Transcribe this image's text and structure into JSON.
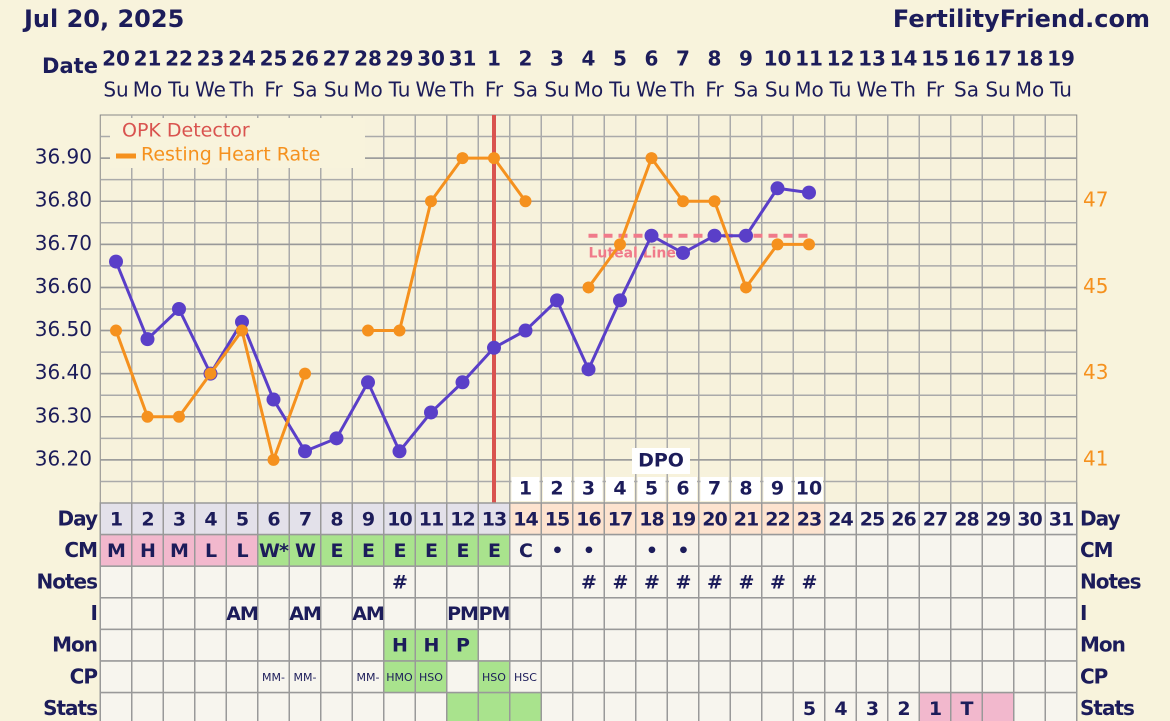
{
  "header": {
    "date": "Jul 20, 2025",
    "site": "FertilityFriend.com"
  },
  "chart_data": {
    "type": "line",
    "x_label": "Date",
    "categories": [
      "20",
      "21",
      "22",
      "23",
      "24",
      "25",
      "26",
      "27",
      "28",
      "29",
      "30",
      "31",
      "1",
      "2",
      "3",
      "4",
      "5",
      "6",
      "7",
      "8",
      "9",
      "10",
      "11",
      "12",
      "13",
      "14",
      "15",
      "16",
      "17",
      "18",
      "19"
    ],
    "weekdays": [
      "Su",
      "Mo",
      "Tu",
      "We",
      "Th",
      "Fr",
      "Sa",
      "Su",
      "Mo",
      "Tu",
      "We",
      "Th",
      "Fr",
      "Sa",
      "Su",
      "Mo",
      "Tu",
      "We",
      "Th",
      "Fr",
      "Sa",
      "Su",
      "Mo",
      "Tu",
      "We",
      "Th",
      "Fr",
      "Sa",
      "Su",
      "Mo",
      "Tu"
    ],
    "ylim": [
      36.1,
      37.0
    ],
    "yticks": [
      {
        "value": 36.2,
        "label": "36.20"
      },
      {
        "value": 36.3,
        "label": "36.30"
      },
      {
        "value": 36.4,
        "label": "36.40"
      },
      {
        "value": 36.5,
        "label": "36.50"
      },
      {
        "value": 36.6,
        "label": "36.60"
      },
      {
        "value": 36.7,
        "label": "36.70"
      },
      {
        "value": 36.8,
        "label": "36.80"
      },
      {
        "value": 36.9,
        "label": "36.90"
      }
    ],
    "y2lim": [
      40,
      49
    ],
    "y2ticks": [
      41,
      43,
      45,
      47
    ],
    "series": [
      {
        "color": "#5a3fc8",
        "values": [
          36.66,
          36.48,
          36.55,
          36.4,
          36.52,
          36.34,
          36.22,
          36.25,
          36.38,
          36.22,
          36.31,
          36.38,
          36.46,
          36.5,
          36.57,
          36.41,
          36.57,
          36.72,
          36.68,
          36.72,
          36.72,
          36.83,
          36.82,
          null,
          null,
          null,
          null,
          null,
          null,
          null,
          null
        ]
      },
      {
        "name": "Resting Heart Rate",
        "color": "#f5911e",
        "axis": "y2",
        "values": [
          44,
          42,
          42,
          43,
          44,
          41,
          43,
          null,
          44,
          44,
          47,
          48,
          48,
          47,
          null,
          45,
          46,
          48,
          47,
          47,
          45,
          46,
          46,
          null,
          null,
          null,
          null,
          null,
          null,
          null,
          null
        ]
      }
    ],
    "legend_extra": {
      "label": "OPK Detector",
      "color": "#d9534f"
    },
    "ovulation_day": 13,
    "ovulation_color": "#d9534f",
    "coverline": {
      "label": "Luteal Line",
      "value": 36.72,
      "from_day": 16,
      "to_day": 23,
      "color": "#f07a8a"
    },
    "dpo": {
      "label": "DPO",
      "start_day": 14,
      "values": [
        1,
        2,
        3,
        4,
        5,
        6,
        7,
        8,
        9,
        10
      ]
    }
  },
  "table": {
    "rows": [
      {
        "label": "Day",
        "cells": [
          1,
          2,
          3,
          4,
          5,
          6,
          7,
          8,
          9,
          10,
          11,
          12,
          13,
          14,
          15,
          16,
          17,
          18,
          19,
          20,
          21,
          22,
          23,
          24,
          25,
          26,
          27,
          28,
          29,
          30,
          31
        ],
        "colors": [
          "#e3e1ea",
          "#e3e1ea",
          "#e3e1ea",
          "#e3e1ea",
          "#e3e1ea",
          "#e3e1ea",
          "#e3e1ea",
          "#e3e1ea",
          "#e3e1ea",
          "#e3e1ea",
          "#e3e1ea",
          "#e3e1ea",
          "#e3e1ea",
          "#fde3cf",
          "#fde3cf",
          "#fde3cf",
          "#fde3cf",
          "#fde3cf",
          "#fde3cf",
          "#fde3cf",
          "#fde3cf",
          "#fde3cf",
          "#fde3cf",
          null,
          null,
          null,
          null,
          null,
          null,
          null,
          null
        ]
      },
      {
        "label": "CM",
        "cells": [
          "M",
          "H",
          "M",
          "L",
          "L",
          "W*",
          "W",
          "E",
          "E",
          "E",
          "E",
          "E",
          "E",
          "C",
          "•",
          "•",
          null,
          "•",
          "•",
          null,
          null,
          null,
          null,
          null,
          null,
          null,
          null,
          null,
          null,
          null,
          null
        ],
        "colors": [
          "#f2b8cd",
          "#f2b8cd",
          "#f2b8cd",
          "#f2b8cd",
          "#f2b8cd",
          "#a9e38d",
          "#a9e38d",
          "#a9e38d",
          "#a9e38d",
          "#a9e38d",
          "#a9e38d",
          "#a9e38d",
          "#a9e38d",
          null,
          null,
          null,
          null,
          null,
          null,
          null,
          null,
          null,
          null,
          null,
          null,
          null,
          null,
          null,
          null,
          null,
          null
        ]
      },
      {
        "label": "Notes",
        "cells": [
          null,
          null,
          null,
          null,
          null,
          null,
          null,
          null,
          null,
          "#",
          null,
          null,
          null,
          null,
          null,
          "#",
          "#",
          "#",
          "#",
          "#",
          "#",
          "#",
          "#",
          null,
          null,
          null,
          null,
          null,
          null,
          null,
          null
        ]
      },
      {
        "label": "I",
        "cells": [
          null,
          null,
          null,
          null,
          "AM",
          null,
          "AM",
          null,
          "AM",
          null,
          null,
          "PM",
          "PM",
          null,
          null,
          null,
          null,
          null,
          null,
          null,
          null,
          null,
          null,
          null,
          null,
          null,
          null,
          null,
          null,
          null,
          null
        ]
      },
      {
        "label": "Mon",
        "cells": [
          null,
          null,
          null,
          null,
          null,
          null,
          null,
          null,
          null,
          "H",
          "H",
          "P",
          null,
          null,
          null,
          null,
          null,
          null,
          null,
          null,
          null,
          null,
          null,
          null,
          null,
          null,
          null,
          null,
          null,
          null,
          null
        ],
        "colors": [
          null,
          null,
          null,
          null,
          null,
          null,
          null,
          null,
          null,
          "#a9e38d",
          "#a9e38d",
          "#a9e38d",
          null,
          null,
          null,
          null,
          null,
          null,
          null,
          null,
          null,
          null,
          null,
          null,
          null,
          null,
          null,
          null,
          null,
          null,
          null
        ]
      },
      {
        "label": "CP",
        "cells": [
          null,
          null,
          null,
          null,
          null,
          "MM-",
          "MM-",
          null,
          "MM-",
          "HMO",
          "HSO",
          null,
          "HSO",
          "HSC",
          null,
          null,
          null,
          null,
          null,
          null,
          null,
          null,
          null,
          null,
          null,
          null,
          null,
          null,
          null,
          null,
          null
        ],
        "colors": [
          null,
          null,
          null,
          null,
          null,
          null,
          null,
          null,
          null,
          "#a9e38d",
          "#a9e38d",
          null,
          "#a9e38d",
          null,
          null,
          null,
          null,
          null,
          null,
          null,
          null,
          null,
          null,
          null,
          null,
          null,
          null,
          null,
          null,
          null,
          null
        ]
      },
      {
        "label": "Stats",
        "cells": [
          null,
          null,
          null,
          null,
          null,
          null,
          null,
          null,
          null,
          null,
          null,
          null,
          null,
          null,
          null,
          null,
          null,
          null,
          null,
          null,
          null,
          null,
          5,
          4,
          3,
          2,
          1,
          "T",
          null,
          null,
          null
        ],
        "colors": [
          null,
          null,
          null,
          null,
          null,
          null,
          null,
          null,
          null,
          null,
          null,
          "#a9e38d",
          "#a9e38d",
          "#a9e38d",
          null,
          null,
          null,
          null,
          null,
          null,
          null,
          null,
          null,
          null,
          null,
          null,
          "#f2b8cd",
          "#f2b8cd",
          "#f2b8cd",
          null,
          null
        ]
      }
    ]
  }
}
